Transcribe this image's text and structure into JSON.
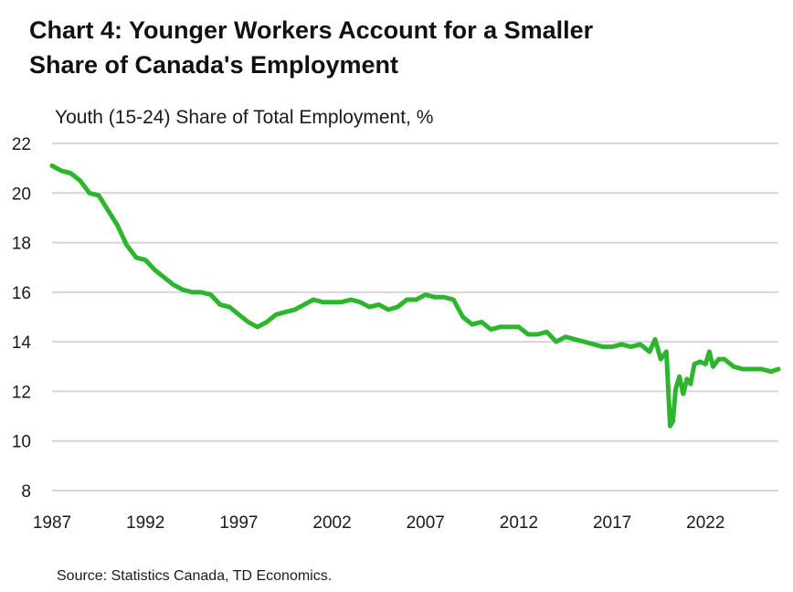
{
  "chart_title": {
    "line1": "Chart 4: Younger Workers Account for a Smaller",
    "line2": "Share of Canada's Employment"
  },
  "source": "Source: Statistics Canada, TD Economics.",
  "chart_data": {
    "type": "line",
    "title": "Chart 4: Younger Workers Account for a Smaller Share of Canada's Employment",
    "ylabel": "Youth (15-24) Share of Total Employment,  %",
    "xlabel": "",
    "ylim": [
      8,
      22
    ],
    "xlim": [
      1987,
      2025.9
    ],
    "y_ticks": [
      8,
      10,
      12,
      14,
      16,
      18,
      20,
      22
    ],
    "x_ticks": [
      "1987",
      "1992",
      "1997",
      "2002",
      "2007",
      "2012",
      "2017",
      "2022"
    ],
    "grid": "horizontal",
    "line_color": "#2db52d",
    "series": [
      {
        "x": [
          1987.0,
          1987.5,
          1988.0,
          1988.5,
          1989.0,
          1989.5,
          1990.0,
          1990.5,
          1991.0,
          1991.5,
          1992.0,
          1992.5,
          1993.0,
          1993.5,
          1994.0,
          1994.5,
          1995.0,
          1995.5,
          1996.0,
          1996.5,
          1997.0,
          1997.5,
          1998.0,
          1998.5,
          1999.0,
          1999.5,
          2000.0,
          2000.5,
          2001.0,
          2001.5,
          2002.0,
          2002.5,
          2003.0,
          2003.5,
          2004.0,
          2004.5,
          2005.0,
          2005.5,
          2006.0,
          2006.5,
          2007.0,
          2007.5,
          2008.0,
          2008.5,
          2009.0,
          2009.5,
          2010.0,
          2010.5,
          2011.0,
          2011.5,
          2012.0,
          2012.5,
          2013.0,
          2013.5,
          2014.0,
          2014.5,
          2015.0,
          2015.5,
          2016.0,
          2016.5,
          2017.0,
          2017.5,
          2018.0,
          2018.5,
          2019.0,
          2019.3,
          2019.6,
          2019.9,
          2020.1,
          2020.25,
          2020.4,
          2020.6,
          2020.8,
          2021.0,
          2021.2,
          2021.4,
          2021.7,
          2022.0,
          2022.2,
          2022.4,
          2022.7,
          2023.0,
          2023.5,
          2024.0,
          2024.5,
          2025.0,
          2025.5,
          2025.9
        ],
        "values": [
          21.1,
          20.9,
          20.8,
          20.5,
          20.0,
          19.9,
          19.3,
          18.7,
          17.9,
          17.4,
          17.3,
          16.9,
          16.6,
          16.3,
          16.1,
          16.0,
          16.0,
          15.9,
          15.5,
          15.4,
          15.1,
          14.8,
          14.6,
          14.8,
          15.1,
          15.2,
          15.3,
          15.5,
          15.7,
          15.6,
          15.6,
          15.6,
          15.7,
          15.6,
          15.4,
          15.5,
          15.3,
          15.4,
          15.7,
          15.7,
          15.9,
          15.8,
          15.8,
          15.7,
          15.0,
          14.7,
          14.8,
          14.5,
          14.6,
          14.6,
          14.6,
          14.3,
          14.3,
          14.4,
          14.0,
          14.2,
          14.1,
          14.0,
          13.9,
          13.8,
          13.8,
          13.9,
          13.8,
          13.9,
          13.6,
          14.1,
          13.3,
          13.6,
          10.6,
          10.8,
          12.1,
          12.6,
          11.9,
          12.5,
          12.3,
          13.1,
          13.2,
          13.1,
          13.6,
          13.0,
          13.3,
          13.3,
          13.0,
          12.9,
          12.9,
          12.9,
          12.8,
          12.9
        ]
      }
    ]
  }
}
